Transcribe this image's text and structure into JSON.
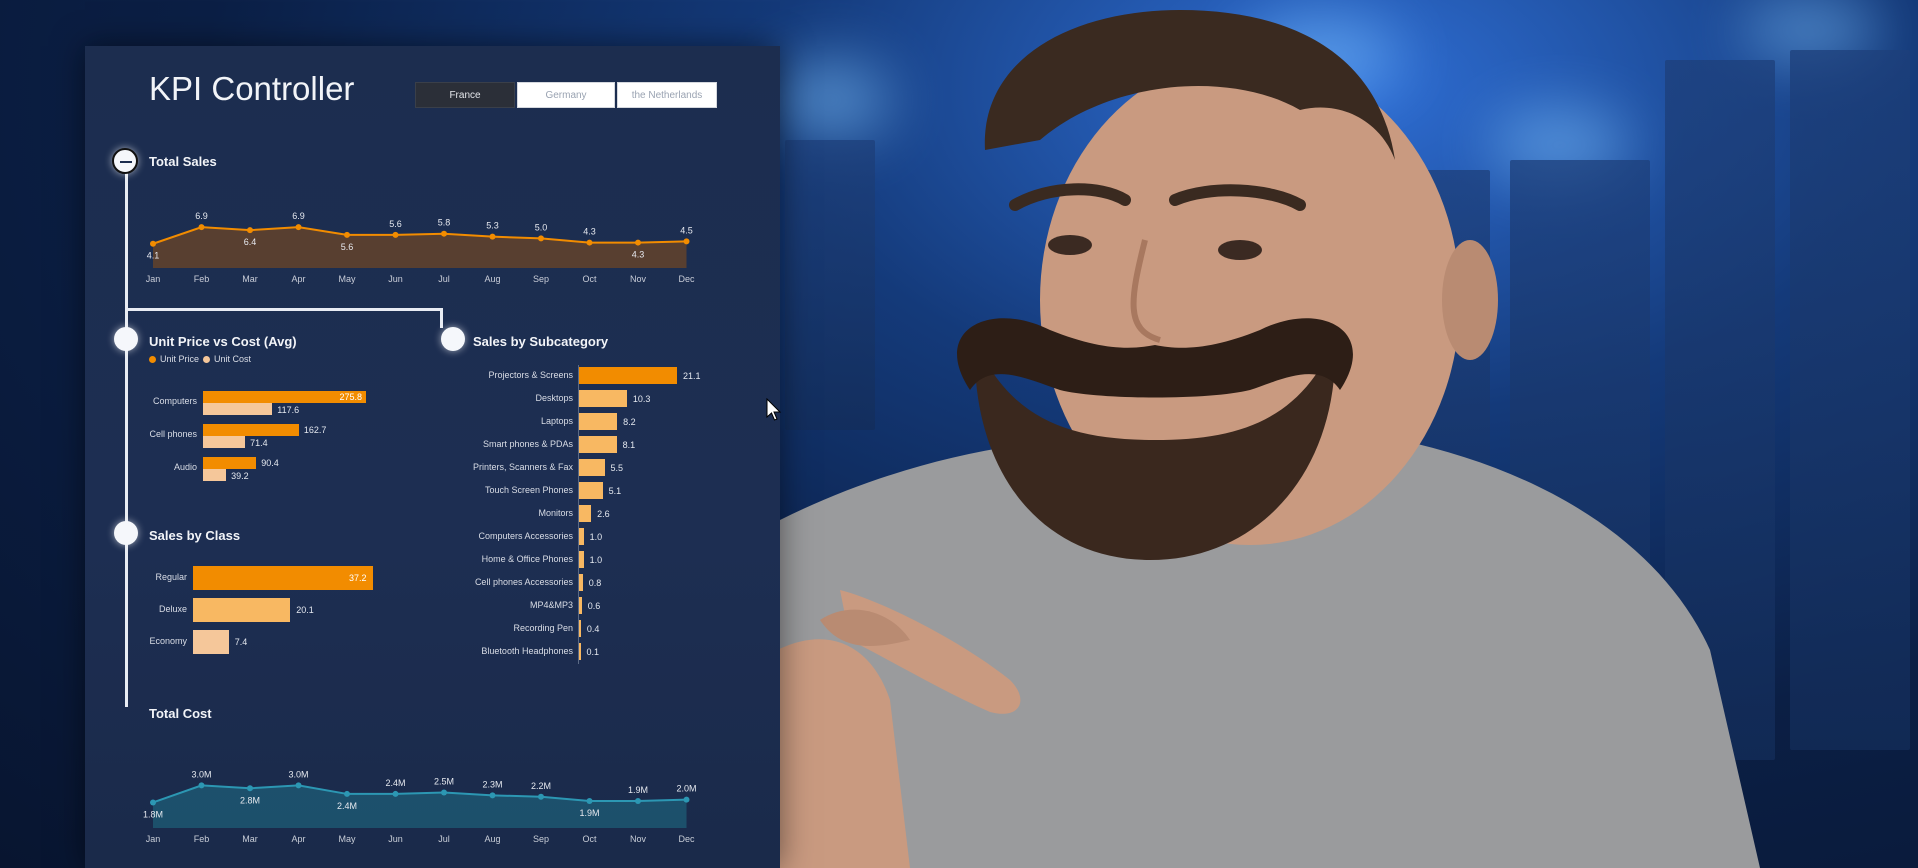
{
  "dashboard": {
    "title": "KPI Controller",
    "slicers": [
      {
        "label": "France",
        "active": true
      },
      {
        "label": "Germany",
        "active": false
      },
      {
        "label": "the Netherlands",
        "active": false
      }
    ]
  },
  "colors": {
    "orange": "#f28c00",
    "light_orange": "#f8b862",
    "peach": "#f5c79a",
    "teal": "#2c7f98"
  },
  "total_sales": {
    "title": "Total Sales",
    "chart_data": {
      "type": "area",
      "categories": [
        "Jan",
        "Feb",
        "Mar",
        "Apr",
        "May",
        "Jun",
        "Jul",
        "Aug",
        "Sep",
        "Oct",
        "Nov",
        "Dec"
      ],
      "values": [
        4.1,
        6.9,
        6.4,
        6.9,
        5.6,
        5.6,
        5.8,
        5.3,
        5.0,
        4.3,
        4.3,
        4.5
      ],
      "labels": [
        "4.1",
        "6.9",
        "6.4",
        "6.9",
        "5.6",
        "5.6",
        "5.8",
        "5.3",
        "5.0",
        "4.3",
        "4.3",
        "4.5"
      ]
    }
  },
  "unit_price_vs_cost": {
    "title": "Unit Price vs Cost (Avg)",
    "legend": [
      "Unit Price",
      "Unit Cost"
    ],
    "chart_data": {
      "type": "bar",
      "categories": [
        "Computers",
        "Cell phones",
        "Audio"
      ],
      "series": [
        {
          "name": "Unit Price",
          "values": [
            275.8,
            162.7,
            90.4
          ]
        },
        {
          "name": "Unit Cost",
          "values": [
            117.6,
            71.4,
            39.2
          ]
        }
      ],
      "labels_price": [
        "275.8",
        "162.7",
        "90.4"
      ],
      "labels_cost": [
        "117.6",
        "71.4",
        "39.2"
      ]
    }
  },
  "sales_by_subcategory": {
    "title": "Sales by Subcategory",
    "chart_data": {
      "type": "bar",
      "categories": [
        "Projectors & Screens",
        "Desktops",
        "Laptops",
        "Smart phones & PDAs",
        "Printers, Scanners & Fax",
        "Touch Screen Phones",
        "Monitors",
        "Computers Accessories",
        "Home & Office Phones",
        "Cell phones Accessories",
        "MP4&MP3",
        "Recording Pen",
        "Bluetooth Headphones"
      ],
      "values": [
        21.1,
        10.3,
        8.2,
        8.1,
        5.5,
        5.1,
        2.6,
        1.0,
        1.0,
        0.8,
        0.6,
        0.4,
        0.1
      ],
      "labels": [
        "21.1",
        "10.3",
        "8.2",
        "8.1",
        "5.5",
        "5.1",
        "2.6",
        "1.0",
        "1.0",
        "0.8",
        "0.6",
        "0.4",
        "0.1"
      ]
    }
  },
  "sales_by_class": {
    "title": "Sales by Class",
    "chart_data": {
      "type": "bar",
      "categories": [
        "Regular",
        "Deluxe",
        "Economy"
      ],
      "values": [
        37.2,
        20.1,
        7.4
      ],
      "labels": [
        "37.2",
        "20.1",
        "7.4"
      ]
    }
  },
  "total_cost": {
    "title": "Total Cost",
    "chart_data": {
      "type": "area",
      "categories": [
        "Jan",
        "Feb",
        "Mar",
        "Apr",
        "May",
        "Jun",
        "Jul",
        "Aug",
        "Sep",
        "Oct",
        "Nov",
        "Dec"
      ],
      "values": [
        1.8,
        3.0,
        2.8,
        3.0,
        2.4,
        2.4,
        2.5,
        2.3,
        2.2,
        1.9,
        1.9,
        2.0
      ],
      "labels": [
        "1.8M",
        "3.0M",
        "2.8M",
        "3.0M",
        "2.4M",
        "2.4M",
        "2.5M",
        "2.3M",
        "2.2M",
        "1.9M",
        "1.9M",
        "2.0M"
      ]
    }
  }
}
